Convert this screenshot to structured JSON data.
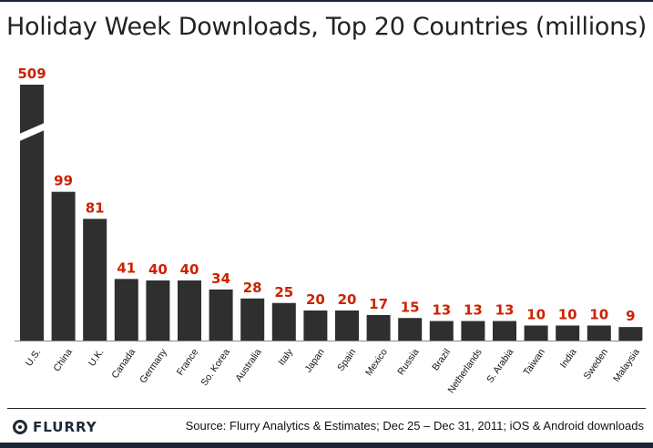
{
  "title": "Holiday Week Downloads, Top 20 Countries (millions)",
  "footer": {
    "logo_text": "FLURRY",
    "source": "Source: Flurry Analytics & Estimates; Dec 25 – Dec 31, 2011; iOS & Android downloads"
  },
  "colors": {
    "bar": "#2f2f2f",
    "value_label": "#cc2200",
    "brand": "#1d2a38"
  },
  "chart_data": {
    "type": "bar",
    "title": "Holiday Week Downloads, Top 20 Countries (millions)",
    "categories": [
      "U.S.",
      "China",
      "U.K.",
      "Canada",
      "Germany",
      "France",
      "So. Korea",
      "Australia",
      "Italy",
      "Japan",
      "Spain",
      "Mexico",
      "Russia",
      "Brazil",
      "Netherlands",
      "S. Arabia",
      "Taiwan",
      "India",
      "Sweden",
      "Malaysia"
    ],
    "values": [
      509,
      99,
      81,
      41,
      40,
      40,
      34,
      28,
      25,
      20,
      20,
      17,
      15,
      13,
      13,
      13,
      10,
      10,
      10,
      9
    ],
    "value_labels": [
      "509",
      "99",
      "81",
      "41",
      "40",
      "40",
      "34",
      "28",
      "25",
      "20",
      "20",
      "17",
      "15",
      "13",
      "13",
      "13",
      "10",
      "10",
      "10",
      "9"
    ],
    "axis_break": true,
    "grid": false,
    "legend": "none",
    "xlabel": "",
    "ylabel": ""
  }
}
